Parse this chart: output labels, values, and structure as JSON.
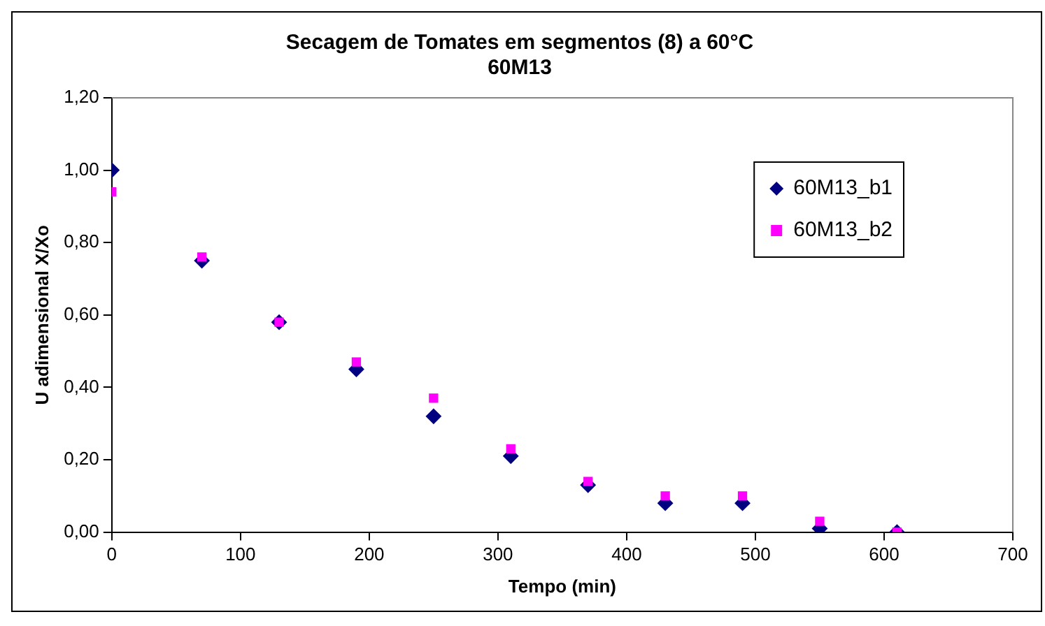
{
  "chart_data": {
    "type": "scatter",
    "title": "Secagem de Tomates em segmentos (8) a 60°C",
    "subtitle": "60M13",
    "xlabel": "Tempo (min)",
    "ylabel": "U adimensional X/Xo",
    "x": [
      0,
      70,
      130,
      190,
      250,
      310,
      370,
      430,
      490,
      550,
      610
    ],
    "series": [
      {
        "name": "60M13_b1",
        "color": "#000080",
        "marker": "diamond",
        "values": [
          1.0,
          0.75,
          0.58,
          0.45,
          0.32,
          0.21,
          0.13,
          0.08,
          0.08,
          0.01,
          0.0
        ]
      },
      {
        "name": "60M13_b2",
        "color": "#ff00ff",
        "marker": "square",
        "values": [
          0.94,
          0.76,
          0.58,
          0.47,
          0.37,
          0.23,
          0.14,
          0.1,
          0.1,
          0.03,
          0.0
        ]
      }
    ],
    "xlim": [
      0,
      700
    ],
    "xticks": [
      0,
      100,
      200,
      300,
      400,
      500,
      600,
      700
    ],
    "ylim": [
      0,
      1.2
    ],
    "yticks": [
      {
        "value": 0,
        "label": "0,00"
      },
      {
        "value": 0.2,
        "label": "0,20"
      },
      {
        "value": 0.4,
        "label": "0,40"
      },
      {
        "value": 0.6,
        "label": "0,60"
      },
      {
        "value": 0.8,
        "label": "0,80"
      },
      {
        "value": 1,
        "label": "1,00"
      },
      {
        "value": 1.2,
        "label": "1,20"
      }
    ],
    "grid": false,
    "legend": "top right"
  }
}
